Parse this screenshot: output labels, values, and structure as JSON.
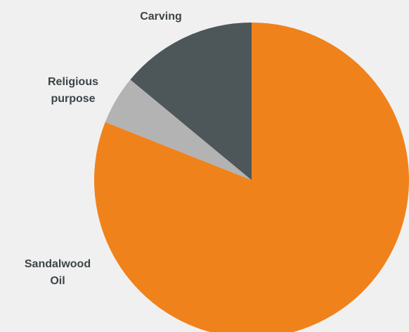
{
  "chart_data": {
    "type": "pie",
    "categories": [
      "Sandalwood Oil",
      "Carving",
      "Religious purpose"
    ],
    "values": [
      81,
      14,
      5
    ],
    "start": "12 o'clock",
    "direction": "clockwise",
    "series": [
      {
        "slices": [
          {
            "label_lines": [
              "Sandalwood",
              "Oil"
            ],
            "value": 81,
            "color": "#f0821b"
          },
          {
            "label_lines": [
              "Religious",
              "purpose"
            ],
            "value": 5,
            "color": "#b3b3b3"
          },
          {
            "label_lines": [
              "Carving"
            ],
            "value": 14,
            "color": "#4d5659"
          }
        ]
      }
    ],
    "colors": {
      "background": "#f0f0f0",
      "label_text": "#3d4447"
    }
  }
}
